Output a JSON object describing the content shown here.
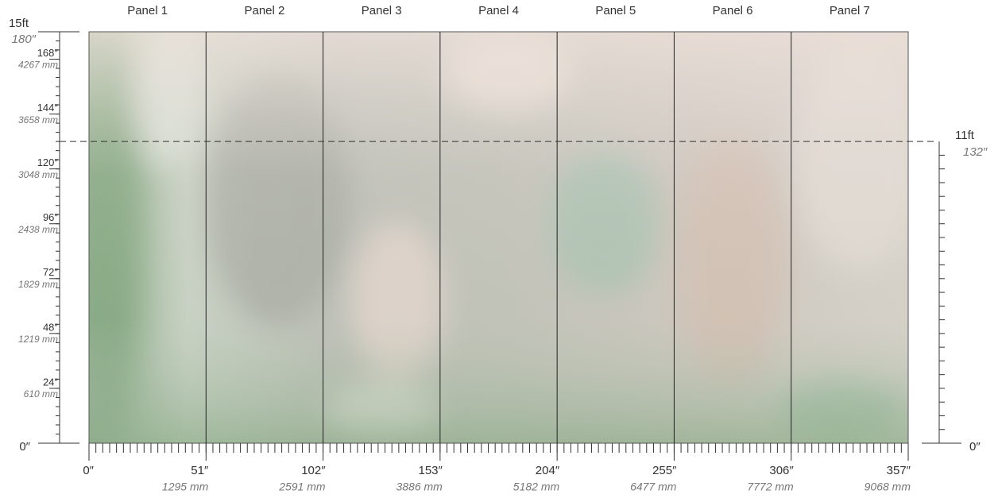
{
  "panels": [
    "Panel 1",
    "Panel 2",
    "Panel 3",
    "Panel 4",
    "Panel 5",
    "Panel 6",
    "Panel 7"
  ],
  "left_ruler": {
    "top": {
      "value": 180,
      "label": "15ft",
      "inches": "180″"
    },
    "ticks": [
      {
        "value": 168,
        "label": "168″",
        "mm": "4267 mm"
      },
      {
        "value": 144,
        "label": "144″",
        "mm": "3658 mm"
      },
      {
        "value": 120,
        "label": "120″",
        "mm": "3048 mm"
      },
      {
        "value": 96,
        "label": "96″",
        "mm": "2438 mm"
      },
      {
        "value": 72,
        "label": "72″",
        "mm": "1829 mm"
      },
      {
        "value": 48,
        "label": "48″",
        "mm": "1219 mm"
      },
      {
        "value": 24,
        "label": "24″",
        "mm": "610 mm"
      }
    ],
    "zero": {
      "value": 0,
      "label": "0″"
    }
  },
  "bottom_ruler": {
    "ticks": [
      {
        "value": 0,
        "label": "0″"
      },
      {
        "value": 51,
        "label": "51″",
        "mm": "1295 mm"
      },
      {
        "value": 102,
        "label": "102″",
        "mm": "2591 mm"
      },
      {
        "value": 153,
        "label": "153″",
        "mm": "3886 mm"
      },
      {
        "value": 204,
        "label": "204″",
        "mm": "5182 mm"
      },
      {
        "value": 255,
        "label": "255″",
        "mm": "6477 mm"
      },
      {
        "value": 306,
        "label": "306″",
        "mm": "7772 mm"
      },
      {
        "value": 357,
        "label": "357″",
        "mm": "9068 mm"
      }
    ]
  },
  "right_ruler": {
    "top": {
      "value": 132,
      "label": "11ft",
      "inches": "132″"
    },
    "zero": {
      "value": 0,
      "label": "0″"
    }
  }
}
